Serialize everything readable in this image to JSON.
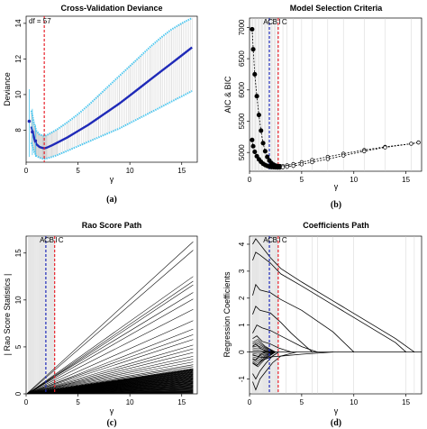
{
  "chart_data": [
    {
      "id": "a",
      "type": "line",
      "title": "Cross-Validation Deviance",
      "xlabel": "γ",
      "ylabel": "Deviance",
      "caption": "(a)",
      "xlim": [
        0,
        16.5
      ],
      "ylim": [
        6.2,
        14.4
      ],
      "xticks": [
        0,
        5,
        10,
        15
      ],
      "yticks": [
        8,
        10,
        12,
        14
      ],
      "annotation": "df = 57",
      "vlines": [
        {
          "x": 1.75,
          "color": "#e8222b"
        }
      ],
      "colors": {
        "mean": "#1f2ab8",
        "band": "#4fc8f0"
      },
      "mean": {
        "x": [
          0.5,
          0.8,
          1.0,
          1.3,
          1.6,
          1.75,
          2.0,
          2.5,
          3,
          4,
          5,
          6,
          7,
          8,
          9,
          10,
          11,
          12,
          13,
          14,
          15,
          16
        ],
        "y": [
          8.2,
          7.5,
          7.2,
          7.05,
          7.0,
          6.98,
          7.02,
          7.15,
          7.3,
          7.6,
          7.95,
          8.3,
          8.7,
          9.1,
          9.5,
          9.95,
          10.4,
          10.85,
          11.3,
          11.75,
          12.2,
          12.65
        ]
      },
      "upper": {
        "x": [
          0.5,
          0.8,
          1.0,
          1.3,
          1.6,
          1.75,
          2.0,
          2.5,
          3,
          4,
          5,
          6,
          7,
          8,
          9,
          10,
          11,
          12,
          13,
          14,
          15,
          16
        ],
        "y": [
          9.1,
          8.3,
          7.95,
          7.75,
          7.7,
          7.68,
          7.72,
          7.88,
          8.05,
          8.45,
          8.9,
          9.4,
          9.95,
          10.5,
          11.05,
          11.6,
          12.15,
          12.7,
          13.2,
          13.65,
          14.0,
          14.3
        ]
      },
      "lower": {
        "x": [
          0.5,
          0.8,
          1.0,
          1.3,
          1.6,
          1.75,
          2.0,
          2.5,
          3,
          4,
          5,
          6,
          7,
          8,
          9,
          10,
          11,
          12,
          13,
          14,
          15,
          16
        ],
        "y": [
          7.3,
          6.75,
          6.55,
          6.45,
          6.4,
          6.38,
          6.42,
          6.5,
          6.6,
          6.85,
          7.1,
          7.35,
          7.6,
          7.85,
          8.1,
          8.4,
          8.7,
          9.0,
          9.3,
          9.6,
          9.9,
          10.2
        ]
      },
      "error_bars": [
        {
          "x": 0.3,
          "y": 8.5,
          "low": 6.5,
          "high": 10.3
        },
        {
          "x": 0.6,
          "y": 7.9,
          "low": 6.6,
          "high": 9.2
        },
        {
          "x": 0.9,
          "y": 7.4,
          "low": 6.5,
          "high": 8.3
        }
      ]
    },
    {
      "id": "b",
      "type": "scatter",
      "title": "Model Selection Criteria",
      "xlabel": "γ",
      "ylabel": "AIC & BIC",
      "caption": "(b)",
      "xlim": [
        0,
        16.5
      ],
      "ylim": [
        4700,
        7150
      ],
      "xticks": [
        0,
        5,
        10,
        15
      ],
      "yticks": [
        5000,
        5500,
        6000,
        6500,
        7000
      ],
      "markers": [
        "A",
        "C",
        "B",
        "I",
        "C"
      ],
      "vlines": [
        {
          "x": 1.9,
          "color": "#1f2ab8"
        },
        {
          "x": 2.75,
          "color": "#e8222b"
        }
      ],
      "series": [
        {
          "name": "BIC",
          "x": [
            0.25,
            0.35,
            0.5,
            0.7,
            0.9,
            1.1,
            1.3,
            1.5,
            1.7,
            1.9,
            2.1,
            2.3,
            2.5,
            2.7,
            2.9,
            3.2,
            3.6,
            4.2,
            5.0,
            6.0,
            7.5,
            9.0,
            11.0,
            13.0,
            15.5,
            16.2
          ],
          "y": [
            6970,
            6650,
            6250,
            5900,
            5600,
            5350,
            5150,
            5020,
            4930,
            4870,
            4830,
            4805,
            4790,
            4782,
            4780,
            4785,
            4795,
            4815,
            4845,
            4880,
            4930,
            4980,
            5040,
            5090,
            5140,
            5160
          ]
        },
        {
          "name": "AIC",
          "x": [
            0.25,
            0.35,
            0.5,
            0.7,
            0.9,
            1.1,
            1.3,
            1.5,
            1.7,
            1.9,
            2.1,
            2.3,
            2.5,
            2.7,
            2.9,
            3.2,
            3.6,
            4.2,
            5.0,
            6.0,
            7.5,
            9.0,
            11.0,
            13.0,
            15.5,
            16.2
          ],
          "y": [
            5200,
            5100,
            5010,
            4940,
            4890,
            4850,
            4820,
            4800,
            4785,
            4775,
            4768,
            4765,
            4763,
            4762,
            4762,
            4764,
            4770,
            4785,
            4810,
            4845,
            4895,
            4950,
            5020,
            5080,
            5140,
            5160
          ]
        }
      ]
    },
    {
      "id": "c",
      "type": "line",
      "title": "Rao Score Path",
      "xlabel": "γ",
      "ylabel": "| Rao Score Statistics |",
      "caption": "(c)",
      "xlim": [
        0,
        16.5
      ],
      "ylim": [
        0,
        16.8
      ],
      "xticks": [
        0,
        5,
        10,
        15
      ],
      "yticks": [
        0,
        5,
        10,
        15
      ],
      "markers": [
        "A",
        "C",
        "B",
        "I",
        "C"
      ],
      "vlines": [
        {
          "x": 1.9,
          "color": "#1f2ab8"
        },
        {
          "x": 2.75,
          "color": "#e8222b"
        }
      ],
      "end_values": [
        16.2,
        15.3,
        12.5,
        12.0,
        11.6,
        10.8,
        10.1,
        9.0,
        7.8,
        6.9,
        6.3,
        5.8,
        5.2,
        4.8,
        4.4,
        4.0,
        3.7,
        3.4,
        3.1,
        2.9,
        2.7,
        2.5,
        2.3,
        2.1,
        1.9,
        1.7,
        1.5,
        1.3,
        1.1,
        0.9,
        0.7,
        0.5,
        0.3,
        0.2,
        0.1,
        0.05
      ]
    },
    {
      "id": "d",
      "type": "line",
      "title": "Coefficients Path",
      "xlabel": "γ",
      "ylabel": "Regression Coefficients",
      "caption": "(d)",
      "xlim": [
        0,
        16.5
      ],
      "ylim": [
        -1.55,
        4.3
      ],
      "xticks": [
        0,
        5,
        10,
        15
      ],
      "yticks": [
        -1,
        0,
        1,
        2,
        3,
        4
      ],
      "markers": [
        "A",
        "C",
        "B",
        "I",
        "C"
      ],
      "vlines": [
        {
          "x": 1.9,
          "color": "#1f2ab8"
        },
        {
          "x": 2.75,
          "color": "#e8222b"
        }
      ],
      "paths": [
        {
          "x": [
            0.3,
            0.6,
            1.0,
            2.0,
            3.0,
            5.0,
            8.0,
            11.0,
            14.0,
            15.8
          ],
          "y": [
            4.0,
            4.2,
            4.0,
            3.5,
            3.1,
            2.6,
            1.9,
            1.2,
            0.5,
            0
          ]
        },
        {
          "x": [
            0.3,
            0.6,
            1.0,
            2.0,
            3.0,
            5.0,
            8.0,
            11.0,
            14.0,
            15.0
          ],
          "y": [
            3.4,
            3.7,
            3.6,
            3.3,
            2.9,
            2.45,
            1.75,
            1.05,
            0.35,
            0
          ]
        },
        {
          "x": [
            0.3,
            0.6,
            1.0,
            2.0,
            3.0,
            5.0,
            8.0,
            10.0
          ],
          "y": [
            2.1,
            2.5,
            2.3,
            2.2,
            1.95,
            1.55,
            0.75,
            0
          ]
        },
        {
          "x": [
            0.3,
            0.6,
            1.0,
            2.0,
            3.0,
            4.0,
            6.0
          ],
          "y": [
            1.4,
            1.7,
            1.55,
            1.45,
            1.1,
            0.7,
            0
          ]
        },
        {
          "x": [
            0.3,
            0.7,
            1.2,
            2.0,
            3.0,
            5.0,
            6.5
          ],
          "y": [
            0.7,
            1.0,
            0.9,
            0.8,
            0.6,
            0.2,
            0
          ]
        },
        {
          "x": [
            0.3,
            0.7,
            1.2,
            2.0,
            2.8,
            4.0
          ],
          "y": [
            0.5,
            0.6,
            0.4,
            0.3,
            0.15,
            0
          ]
        },
        {
          "x": [
            0.3,
            0.7,
            1.2,
            2.0,
            2.8
          ],
          "y": [
            -0.4,
            -0.5,
            -0.3,
            -0.2,
            0
          ]
        },
        {
          "x": [
            0.3,
            0.7,
            1.2,
            2.0,
            3.0,
            5.0,
            8.0
          ],
          "y": [
            -0.1,
            -0.15,
            -0.2,
            -0.18,
            -0.15,
            -0.08,
            0
          ]
        },
        {
          "x": [
            0.3,
            0.6,
            1.0,
            1.6,
            2.2,
            3.0,
            4.5
          ],
          "y": [
            -1.1,
            -1.4,
            -1.0,
            -0.7,
            -0.4,
            -0.15,
            0
          ]
        },
        {
          "x": [
            0.3,
            0.6,
            1.0,
            1.6,
            2.2,
            2.8
          ],
          "y": [
            -0.8,
            -1.0,
            -0.7,
            -0.4,
            -0.15,
            0
          ]
        },
        {
          "x": [
            0.3,
            0.6,
            1.0,
            1.5,
            2.0
          ],
          "y": [
            0.2,
            0.3,
            0.15,
            0.05,
            0
          ]
        },
        {
          "x": [
            0.3,
            0.6,
            1.0,
            1.5
          ],
          "y": [
            -0.25,
            -0.3,
            -0.1,
            0
          ]
        }
      ]
    }
  ]
}
